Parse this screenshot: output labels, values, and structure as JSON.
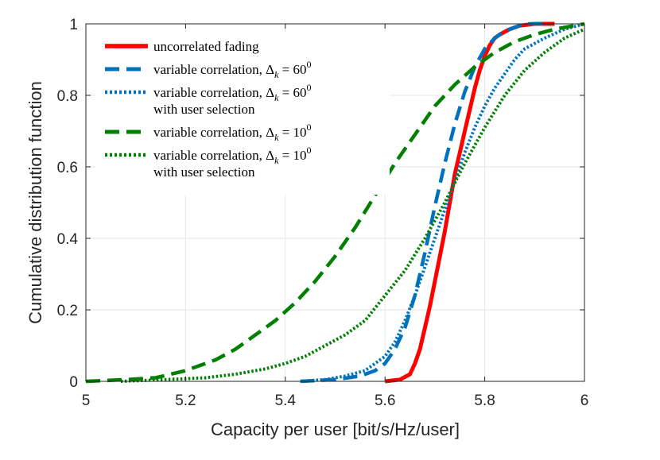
{
  "chart_data": {
    "type": "line",
    "title": "",
    "xlabel": "Capacity per user [bit/s/Hz/user]",
    "ylabel": "Cumulative distribution function",
    "xlim": [
      5,
      6
    ],
    "ylim": [
      0,
      1
    ],
    "xticks": [
      "5",
      "5.2",
      "5.4",
      "5.6",
      "5.8",
      "6"
    ],
    "yticks": [
      "0",
      "0.2",
      "0.4",
      "0.6",
      "0.8",
      "1"
    ],
    "xtick_values": [
      5,
      5.2,
      5.4,
      5.6,
      5.8,
      6
    ],
    "ytick_values": [
      0,
      0.2,
      0.4,
      0.6,
      0.8,
      1
    ],
    "grid": true,
    "legend_position": "top-left",
    "series": [
      {
        "name": "uncorrelated fading",
        "legend_lines": [
          "uncorrelated fading"
        ],
        "color": "#ff0000",
        "style": "solid",
        "x": [
          5.6,
          5.63,
          5.65,
          5.66,
          5.67,
          5.68,
          5.69,
          5.7,
          5.71,
          5.72,
          5.73,
          5.74,
          5.75,
          5.76,
          5.77,
          5.78,
          5.79,
          5.8,
          5.81,
          5.82,
          5.83,
          5.85,
          5.87,
          5.9,
          5.94
        ],
        "y": [
          0.0,
          0.005,
          0.02,
          0.05,
          0.09,
          0.15,
          0.21,
          0.28,
          0.35,
          0.42,
          0.5,
          0.58,
          0.64,
          0.7,
          0.76,
          0.82,
          0.87,
          0.91,
          0.94,
          0.96,
          0.97,
          0.985,
          0.995,
          1.0,
          1.0
        ]
      },
      {
        "name": "variable correlation, Δk = 60°",
        "legend_lines": [
          "variable correlation, Δ",
          "= 60"
        ],
        "legend_sub": "k",
        "legend_sup": "0",
        "color": "#0072bd",
        "style": "dashed",
        "x": [
          5.43,
          5.5,
          5.55,
          5.58,
          5.6,
          5.62,
          5.64,
          5.66,
          5.68,
          5.7,
          5.72,
          5.74,
          5.76,
          5.78,
          5.8,
          5.82,
          5.84,
          5.86,
          5.88,
          5.92
        ],
        "y": [
          0.0,
          0.005,
          0.015,
          0.03,
          0.05,
          0.09,
          0.15,
          0.24,
          0.36,
          0.49,
          0.61,
          0.72,
          0.81,
          0.88,
          0.93,
          0.96,
          0.98,
          0.99,
          1.0,
          1.0
        ]
      },
      {
        "name": "variable correlation, Δk = 60° with user selection",
        "legend_lines": [
          "variable correlation, Δ",
          "= 60",
          "with user selection"
        ],
        "legend_sub": "k",
        "legend_sup": "0",
        "color": "#0072bd",
        "style": "dotted",
        "x": [
          5.43,
          5.48,
          5.52,
          5.56,
          5.6,
          5.62,
          5.64,
          5.66,
          5.68,
          5.7,
          5.72,
          5.74,
          5.76,
          5.78,
          5.8,
          5.82,
          5.84,
          5.86,
          5.88,
          5.92,
          5.96,
          6.0
        ],
        "y": [
          0.0,
          0.005,
          0.015,
          0.03,
          0.07,
          0.11,
          0.17,
          0.24,
          0.32,
          0.4,
          0.48,
          0.56,
          0.64,
          0.71,
          0.77,
          0.82,
          0.86,
          0.9,
          0.93,
          0.96,
          0.985,
          1.0
        ]
      },
      {
        "name": "variable correlation, Δk = 10°",
        "legend_lines": [
          "variable correlation, Δ",
          "= 10"
        ],
        "legend_sub": "k",
        "legend_sup": "0",
        "color": "#008000",
        "style": "dashed",
        "x": [
          5.0,
          5.08,
          5.14,
          5.2,
          5.26,
          5.3,
          5.34,
          5.38,
          5.42,
          5.46,
          5.5,
          5.54,
          5.58,
          5.62,
          5.66,
          5.7,
          5.74,
          5.78,
          5.82,
          5.86,
          5.9,
          5.94,
          5.98,
          6.0
        ],
        "y": [
          0.0,
          0.005,
          0.01,
          0.03,
          0.06,
          0.09,
          0.13,
          0.17,
          0.22,
          0.28,
          0.35,
          0.43,
          0.52,
          0.61,
          0.69,
          0.77,
          0.83,
          0.88,
          0.92,
          0.95,
          0.97,
          0.985,
          0.995,
          1.0
        ]
      },
      {
        "name": "variable correlation, Δk = 10° with user selection",
        "legend_lines": [
          "variable correlation, Δ",
          "= 10",
          "with user selection"
        ],
        "legend_sub": "k",
        "legend_sup": "0",
        "color": "#008000",
        "style": "dotted",
        "x": [
          5.07,
          5.16,
          5.24,
          5.3,
          5.36,
          5.4,
          5.44,
          5.48,
          5.52,
          5.56,
          5.6,
          5.64,
          5.68,
          5.72,
          5.76,
          5.8,
          5.84,
          5.88,
          5.92,
          5.96,
          6.0
        ],
        "y": [
          0.0,
          0.005,
          0.01,
          0.02,
          0.035,
          0.05,
          0.07,
          0.1,
          0.13,
          0.17,
          0.24,
          0.31,
          0.4,
          0.5,
          0.61,
          0.71,
          0.8,
          0.87,
          0.92,
          0.96,
          0.985
        ]
      }
    ]
  }
}
